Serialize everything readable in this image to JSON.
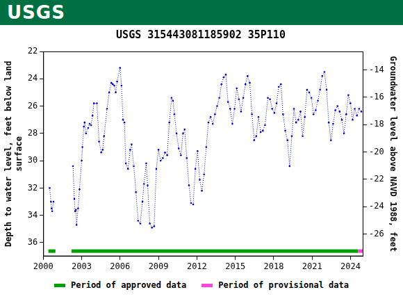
{
  "chart_data": {
    "type": "line",
    "banner": "USGS",
    "title": "USGS 315443081185902 35P110",
    "y_label": [
      "Depth to water level, feet below land",
      "surface"
    ],
    "y2_label": "Groundwater level above NAVD 1988, feet",
    "xlim": [
      2000,
      2025
    ],
    "xticks": [
      2000,
      2003,
      2006,
      2009,
      2012,
      2015,
      2018,
      2021,
      2024
    ],
    "ylim": [
      37,
      22
    ],
    "yticks": [
      22,
      24,
      26,
      28,
      30,
      32,
      34,
      36
    ],
    "y2lim": [
      -27.64,
      -12.64
    ],
    "y2ticks": [
      -14,
      -16,
      -18,
      -20,
      -22,
      -24,
      -26
    ],
    "grid": false,
    "series": [
      {
        "name": "Depth to water level",
        "color": "#0000cc",
        "marker": "circle",
        "line_style": "dotted",
        "x": [
          2000.5,
          2000.6,
          2000.65,
          2000.7,
          2000.8,
          2001.5,
          2002.32,
          2002.43,
          2002.49,
          2002.55,
          2002.6,
          2002.72,
          2002.83,
          2003.0,
          2003.06,
          2003.17,
          2003.23,
          2003.34,
          2003.51,
          2003.62,
          2003.74,
          2003.85,
          2003.96,
          2004.19,
          2004.36,
          2004.53,
          2004.64,
          2004.75,
          2004.98,
          2005.15,
          2005.32,
          2005.43,
          2005.55,
          2005.66,
          2005.77,
          2006.0,
          2006.11,
          2006.23,
          2006.34,
          2006.45,
          2006.62,
          2006.79,
          2006.9,
          2007.07,
          2007.24,
          2007.41,
          2007.58,
          2007.75,
          2007.87,
          2008.04,
          2008.15,
          2008.32,
          2008.49,
          2008.66,
          2008.83,
          2009.0,
          2009.17,
          2009.34,
          2009.51,
          2009.68,
          2009.85,
          2010.02,
          2010.13,
          2010.24,
          2010.41,
          2010.58,
          2010.75,
          2010.92,
          2011.04,
          2011.21,
          2011.38,
          2011.54,
          2011.71,
          2011.88,
          2012.05,
          2012.22,
          2012.39,
          2012.56,
          2012.73,
          2012.9,
          2013.07,
          2013.24,
          2013.41,
          2013.58,
          2013.75,
          2013.92,
          2014.09,
          2014.26,
          2014.43,
          2014.6,
          2014.77,
          2014.94,
          2015.11,
          2015.28,
          2015.45,
          2015.62,
          2015.79,
          2015.96,
          2016.13,
          2016.3,
          2016.47,
          2016.64,
          2016.81,
          2016.98,
          2017.15,
          2017.32,
          2017.54,
          2017.71,
          2017.88,
          2018.05,
          2018.22,
          2018.39,
          2018.56,
          2018.73,
          2018.9,
          2019.07,
          2019.24,
          2019.41,
          2019.58,
          2019.75,
          2019.92,
          2020.09,
          2020.26,
          2020.43,
          2020.6,
          2020.77,
          2020.94,
          2021.11,
          2021.28,
          2021.45,
          2021.62,
          2021.79,
          2021.96,
          2022.13,
          2022.3,
          2022.47,
          2022.64,
          2022.81,
          2022.98,
          2023.15,
          2023.32,
          2023.49,
          2023.66,
          2023.83,
          2023.99,
          2024.16,
          2024.33,
          2024.5,
          2024.67,
          2024.84
        ],
        "values": [
          32.0,
          33.0,
          33.5,
          33.7,
          33.0,
          null,
          30.4,
          32.8,
          33.7,
          33.6,
          34.7,
          33.5,
          32.1,
          30.0,
          29.0,
          27.5,
          27.2,
          28.0,
          27.6,
          27.3,
          27.4,
          26.7,
          25.8,
          25.8,
          28.6,
          29.4,
          29.2,
          28.2,
          26.2,
          25.0,
          24.3,
          24.4,
          24.5,
          25.0,
          24.2,
          23.2,
          24.5,
          27.0,
          27.2,
          30.2,
          30.6,
          29.2,
          28.8,
          30.4,
          32.3,
          34.4,
          34.6,
          33.0,
          31.7,
          30.2,
          31.8,
          34.6,
          34.9,
          34.8,
          30.6,
          29.2,
          30.0,
          29.8,
          29.4,
          29.6,
          27.2,
          25.4,
          25.6,
          26.6,
          28.0,
          29.1,
          29.6,
          28.0,
          27.7,
          29.8,
          31.8,
          33.1,
          33.2,
          30.6,
          29.3,
          31.4,
          32.2,
          31.0,
          29.0,
          27.2,
          26.8,
          27.3,
          26.6,
          26.0,
          25.4,
          24.4,
          23.9,
          23.7,
          25.7,
          26.2,
          27.3,
          26.2,
          24.7,
          25.5,
          26.4,
          25.4,
          24.4,
          23.8,
          24.3,
          26.6,
          28.5,
          28.2,
          26.8,
          27.9,
          27.8,
          27.4,
          25.4,
          25.5,
          26.2,
          26.5,
          25.8,
          24.6,
          24.4,
          26.6,
          27.8,
          28.5,
          30.4,
          28.2,
          26.2,
          27.2,
          27.0,
          26.4,
          28.2,
          26.8,
          24.8,
          25.0,
          25.4,
          26.6,
          26.3,
          25.6,
          24.8,
          23.8,
          23.5,
          24.8,
          27.2,
          28.5,
          27.3,
          26.3,
          26.0,
          26.4,
          27.0,
          28.0,
          26.6,
          25.2,
          25.8,
          27.0,
          26.2,
          26.7,
          26.2,
          26.4
        ]
      }
    ],
    "periods": [
      {
        "name": "Period of approved data",
        "color": "#00a000",
        "ranges": [
          [
            2000.4,
            2000.95
          ],
          [
            2002.2,
            2024.6
          ]
        ]
      },
      {
        "name": "Period of provisional data",
        "color": "#ff44dd",
        "ranges": [
          [
            2024.6,
            2025
          ]
        ]
      }
    ]
  }
}
